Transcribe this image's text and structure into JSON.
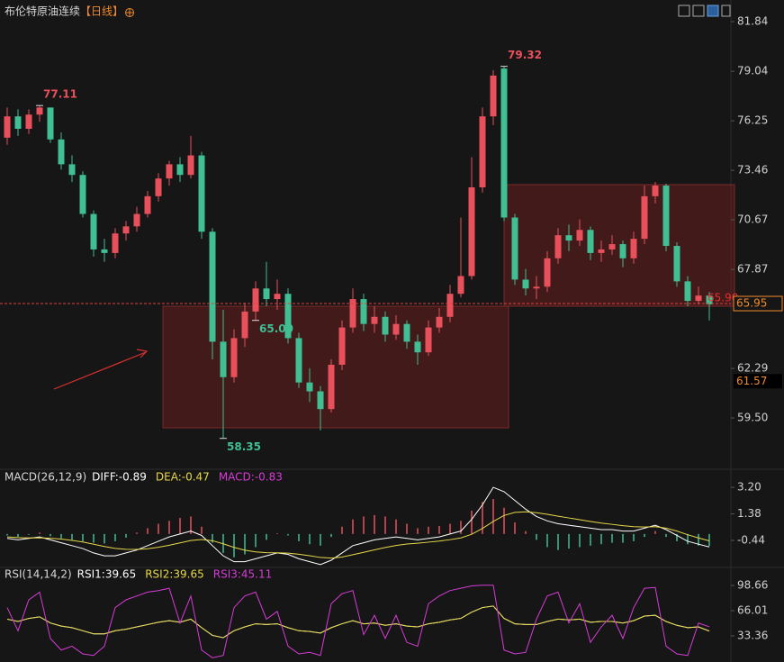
{
  "chart_data": [
    {
      "type": "candlestick",
      "title": "布伦特原油连续",
      "subtitle": "【日线】",
      "up_color": "#e8505b",
      "down_color": "#3fbf93",
      "ylim": [
        56.66,
        83.06
      ],
      "yticks": [
        81.84,
        79.04,
        76.25,
        73.46,
        70.67,
        67.87,
        62.29,
        {
          "value": 59.5,
          "label": "59.50"
        }
      ],
      "candles": [
        [
          75.3,
          77.0,
          74.9,
          76.5
        ],
        [
          76.5,
          76.9,
          75.4,
          75.8
        ],
        [
          75.8,
          76.9,
          75.5,
          76.6
        ],
        [
          76.6,
          77.11,
          76.2,
          77.0
        ],
        [
          77.0,
          77.0,
          75.0,
          75.2
        ],
        [
          75.2,
          75.6,
          73.5,
          73.8
        ],
        [
          73.8,
          74.3,
          72.8,
          73.2
        ],
        [
          73.2,
          73.4,
          70.8,
          71.0
        ],
        [
          71.0,
          71.2,
          68.6,
          69.0
        ],
        [
          69.0,
          69.6,
          68.3,
          68.8
        ],
        [
          68.8,
          70.2,
          68.5,
          69.9
        ],
        [
          69.9,
          70.6,
          69.5,
          70.3
        ],
        [
          70.3,
          71.4,
          70.0,
          71.0
        ],
        [
          71.0,
          72.3,
          70.8,
          72.0
        ],
        [
          72.0,
          73.3,
          71.7,
          73.0
        ],
        [
          73.0,
          74.0,
          72.6,
          73.8
        ],
        [
          73.8,
          74.2,
          72.8,
          73.2
        ],
        [
          73.2,
          75.4,
          73.0,
          74.3
        ],
        [
          74.3,
          74.5,
          69.6,
          70.0
        ],
        [
          70.0,
          70.2,
          62.8,
          63.8
        ],
        [
          63.8,
          65.6,
          58.35,
          61.8
        ],
        [
          61.8,
          64.5,
          61.5,
          64.0
        ],
        [
          64.0,
          66.0,
          63.5,
          65.5
        ],
        [
          65.5,
          67.2,
          65.0,
          66.8
        ],
        [
          66.8,
          68.3,
          65.8,
          66.2
        ],
        [
          66.2,
          67.3,
          65.6,
          66.5
        ],
        [
          66.5,
          66.8,
          63.7,
          64.0
        ],
        [
          64.0,
          64.3,
          61.2,
          61.5
        ],
        [
          61.5,
          62.3,
          60.4,
          61.0
        ],
        [
          61.0,
          61.3,
          58.8,
          60.0
        ],
        [
          60.0,
          62.8,
          59.8,
          62.5
        ],
        [
          62.5,
          65.0,
          62.2,
          64.6
        ],
        [
          64.6,
          66.8,
          64.3,
          66.2
        ],
        [
          66.2,
          66.5,
          64.4,
          64.8
        ],
        [
          64.8,
          65.8,
          64.3,
          65.2
        ],
        [
          65.2,
          65.5,
          63.8,
          64.2
        ],
        [
          64.2,
          65.3,
          63.9,
          64.8
        ],
        [
          64.8,
          65.0,
          63.4,
          63.8
        ],
        [
          63.8,
          64.2,
          62.5,
          63.2
        ],
        [
          63.2,
          65.0,
          63.0,
          64.6
        ],
        [
          64.6,
          65.7,
          64.3,
          65.2
        ],
        [
          65.2,
          67.0,
          64.9,
          66.5
        ],
        [
          66.5,
          70.8,
          66.3,
          67.5
        ],
        [
          67.5,
          74.2,
          67.3,
          72.5
        ],
        [
          72.5,
          77.0,
          72.2,
          76.5
        ],
        [
          76.5,
          79.1,
          76.0,
          78.8
        ],
        [
          79.2,
          79.32,
          70.6,
          70.8
        ],
        [
          70.8,
          71.0,
          67.0,
          67.3
        ],
        [
          67.3,
          67.9,
          66.4,
          66.8
        ],
        [
          66.8,
          67.5,
          66.2,
          66.9
        ],
        [
          66.9,
          68.9,
          66.6,
          68.5
        ],
        [
          68.5,
          70.2,
          68.2,
          69.8
        ],
        [
          69.8,
          70.4,
          68.9,
          69.5
        ],
        [
          69.5,
          70.7,
          69.2,
          70.1
        ],
        [
          70.1,
          70.3,
          68.4,
          68.8
        ],
        [
          68.8,
          69.5,
          68.3,
          69.0
        ],
        [
          69.0,
          69.8,
          68.7,
          69.3
        ],
        [
          69.3,
          69.5,
          68.0,
          68.5
        ],
        [
          68.5,
          70.0,
          68.2,
          69.6
        ],
        [
          69.6,
          72.6,
          69.3,
          72.0
        ],
        [
          72.0,
          72.8,
          71.6,
          72.6
        ],
        [
          72.6,
          72.7,
          68.9,
          69.2
        ],
        [
          69.2,
          69.4,
          66.9,
          67.2
        ],
        [
          67.2,
          67.5,
          65.8,
          66.1
        ],
        [
          66.1,
          66.9,
          65.9,
          66.4
        ],
        [
          66.4,
          66.6,
          65.0,
          65.9
        ]
      ],
      "max_marks": [
        77.11,
        79.32
      ],
      "min_marks": [
        58.35,
        {
          "value": 65,
          "label": "65.00"
        }
      ],
      "last_close_label": {
        "value": 65.9,
        "label": "65.90"
      },
      "current_price": {
        "value": 65.95,
        "label": "65.95"
      },
      "cursor_price": {
        "value": 61.57,
        "label": "61.57"
      }
    },
    {
      "type": "macd",
      "title": "MACD(26,12,9)",
      "ylim": [
        -2.17,
        3.76
      ],
      "yticks": [
        {
          "value": 3.2,
          "label": "3.20"
        },
        1.38,
        -0.44
      ],
      "up_color": "#e8505b",
      "down_color": "#3fbf93",
      "series": [
        {
          "name": "DIFF:-0.89",
          "color": "#ffffff",
          "values": [
            -0.3,
            -0.4,
            -0.3,
            -0.2,
            -0.4,
            -0.6,
            -0.8,
            -1.0,
            -1.3,
            -1.5,
            -1.5,
            -1.3,
            -1.1,
            -0.8,
            -0.5,
            -0.2,
            0.0,
            0.2,
            -0.1,
            -0.8,
            -1.5,
            -1.9,
            -1.9,
            -1.7,
            -1.5,
            -1.3,
            -1.4,
            -1.7,
            -1.9,
            -2.1,
            -1.8,
            -1.3,
            -0.8,
            -0.6,
            -0.4,
            -0.3,
            -0.2,
            -0.3,
            -0.4,
            -0.3,
            -0.2,
            0.0,
            0.2,
            1.0,
            2.0,
            3.2,
            2.9,
            2.3,
            1.7,
            1.2,
            0.9,
            0.7,
            0.6,
            0.5,
            0.4,
            0.3,
            0.3,
            0.2,
            0.2,
            0.4,
            0.6,
            0.3,
            -0.1,
            -0.5,
            -0.7,
            -0.89
          ]
        },
        {
          "name": "DEA:-0.47",
          "color": "#e6d84a",
          "values": [
            -0.2,
            -0.25,
            -0.27,
            -0.26,
            -0.29,
            -0.35,
            -0.44,
            -0.55,
            -0.7,
            -0.86,
            -0.99,
            -1.05,
            -1.06,
            -1.01,
            -0.91,
            -0.77,
            -0.61,
            -0.45,
            -0.38,
            -0.46,
            -0.67,
            -0.92,
            -1.11,
            -1.23,
            -1.28,
            -1.29,
            -1.31,
            -1.39,
            -1.49,
            -1.61,
            -1.65,
            -1.58,
            -1.42,
            -1.26,
            -1.09,
            -0.93,
            -0.79,
            -0.69,
            -0.63,
            -0.56,
            -0.49,
            -0.39,
            -0.27,
            -0.02,
            0.38,
            0.86,
            1.27,
            1.48,
            1.52,
            1.46,
            1.35,
            1.22,
            1.1,
            0.98,
            0.86,
            0.75,
            0.66,
            0.57,
            0.5,
            0.48,
            0.5,
            0.4,
            0.2,
            -0.05,
            -0.27,
            -0.47
          ]
        },
        {
          "name": "MACD:-0.83",
          "color": "#d63cd6",
          "type": "bar",
          "values": [
            -0.1,
            -0.2,
            -0.05,
            0.1,
            -0.15,
            -0.3,
            -0.4,
            -0.5,
            -0.6,
            -0.65,
            -0.5,
            -0.25,
            0.1,
            0.4,
            0.7,
            0.9,
            1.1,
            1.2,
            0.5,
            -0.6,
            -1.3,
            -1.6,
            -1.4,
            -0.9,
            -0.4,
            0.05,
            -0.1,
            -0.5,
            -0.7,
            -0.8,
            -0.2,
            0.5,
            1.0,
            1.2,
            1.3,
            1.2,
            1.0,
            0.7,
            0.4,
            0.5,
            0.55,
            0.7,
            0.9,
            1.6,
            2.2,
            2.4,
            1.8,
            0.8,
            0.2,
            -0.4,
            -0.9,
            -1.1,
            -1.0,
            -0.9,
            -0.8,
            -0.7,
            -0.6,
            -0.6,
            -0.5,
            -0.2,
            0.2,
            -0.2,
            -0.5,
            -0.7,
            -0.8,
            -0.83
          ]
        }
      ]
    },
    {
      "type": "line",
      "title": "RSI(14,14,2)",
      "ylim": [
        7.7,
        110.3
      ],
      "yticks": [
        98.66,
        66.01,
        33.36
      ],
      "series": [
        {
          "name": "RSI1:39.65",
          "color": "#ffffff",
          "values": [
            55,
            52,
            56,
            58,
            50,
            46,
            44,
            40,
            36,
            36,
            40,
            42,
            45,
            48,
            51,
            53,
            51,
            55,
            44,
            34,
            31,
            40,
            45,
            49,
            48,
            49,
            44,
            40,
            39,
            37,
            44,
            49,
            53,
            49,
            50,
            47,
            49,
            46,
            45,
            49,
            51,
            54,
            56,
            64,
            70,
            72,
            56,
            49,
            48,
            48,
            52,
            55,
            54,
            55,
            51,
            52,
            52,
            50,
            53,
            59,
            60,
            52,
            47,
            44,
            45,
            39.65
          ]
        },
        {
          "name": "RSI2:39.65",
          "color": "#e6d84a",
          "values": [
            55,
            52,
            56,
            58,
            50,
            46,
            44,
            40,
            36,
            36,
            40,
            42,
            45,
            48,
            51,
            53,
            51,
            55,
            44,
            34,
            31,
            40,
            45,
            49,
            48,
            49,
            44,
            40,
            39,
            37,
            44,
            49,
            53,
            49,
            50,
            47,
            49,
            46,
            45,
            49,
            51,
            54,
            56,
            64,
            70,
            72,
            56,
            49,
            48,
            48,
            52,
            55,
            54,
            55,
            51,
            52,
            52,
            50,
            53,
            59,
            60,
            52,
            47,
            44,
            45,
            39.65
          ]
        },
        {
          "name": "RSI3:45.11",
          "color": "#d63cd6",
          "values": [
            70,
            40,
            80,
            90,
            30,
            15,
            20,
            10,
            8,
            20,
            70,
            80,
            85,
            90,
            92,
            95,
            50,
            85,
            15,
            5,
            8,
            70,
            85,
            90,
            55,
            65,
            20,
            10,
            12,
            8,
            75,
            88,
            92,
            35,
            60,
            30,
            60,
            25,
            20,
            75,
            85,
            92,
            95,
            98,
            99,
            99,
            15,
            10,
            12,
            55,
            85,
            90,
            50,
            75,
            25,
            45,
            60,
            30,
            70,
            95,
            96,
            20,
            10,
            8,
            50,
            45.11
          ]
        }
      ]
    }
  ]
}
